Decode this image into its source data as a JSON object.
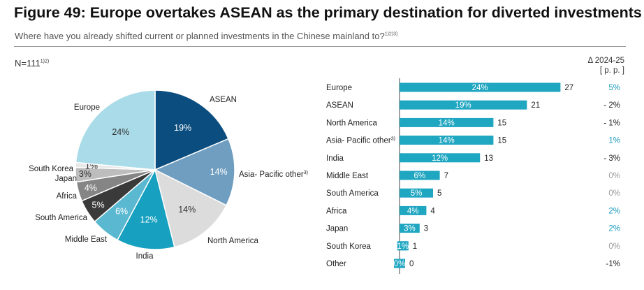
{
  "title": "Figure 49: Europe overtakes ASEAN as the primary destination for diverted investments",
  "subtitle": "Where have you already shifted current or planned investments in the Chinese mainland to?",
  "subtitle_note": "1)2)3)",
  "n_label": "N=111",
  "n_note": "1)2)",
  "delta_header": [
    "Δ 2024-25",
    "[ p. p. ]"
  ],
  "colors": {
    "bar": "#1fa6c1",
    "positive_delta": "#1a9cc0",
    "negative_delta": "#222222",
    "zero_delta": "#999999"
  },
  "chart_data": [
    {
      "type": "pie",
      "slices": [
        {
          "label": "ASEAN",
          "value": 19,
          "pct_label": "19%",
          "color": "#0b4d7e"
        },
        {
          "label": "Asia- Pacific other",
          "note": "3)",
          "value": 14,
          "pct_label": "14%",
          "color": "#6f9ec0"
        },
        {
          "label": "North America",
          "value": 14,
          "pct_label": "14%",
          "color": "#dcdcdc"
        },
        {
          "label": "India",
          "value": 12,
          "pct_label": "12%",
          "color": "#17a0bf"
        },
        {
          "label": "Middle East",
          "value": 6,
          "pct_label": "6%",
          "color": "#5ab9d1"
        },
        {
          "label": "South America",
          "value": 5,
          "pct_label": "5%",
          "color": "#3a3a3a"
        },
        {
          "label": "Africa",
          "value": 4,
          "pct_label": "4%",
          "color": "#858585"
        },
        {
          "label": "Japan",
          "value": 3,
          "pct_label": "3%",
          "color": "#bdbdbd"
        },
        {
          "label": "South Korea",
          "value": 1,
          "pct_label": "1%",
          "color": "#e8e8e8"
        },
        {
          "label": "Europe",
          "value": 24,
          "pct_label": "24%",
          "color": "#a9dbe8"
        }
      ]
    },
    {
      "type": "bar",
      "orientation": "horizontal",
      "rows": [
        {
          "category": "Europe",
          "pct_label": "24%",
          "count": 27,
          "delta": "5%"
        },
        {
          "category": "ASEAN",
          "pct_label": "19%",
          "count": 21,
          "delta": "- 2%"
        },
        {
          "category": "North America",
          "pct_label": "14%",
          "count": 15,
          "delta": "- 1%"
        },
        {
          "category": "Asia- Pacific other",
          "note": "3)",
          "pct_label": "14%",
          "count": 15,
          "delta": "1%"
        },
        {
          "category": "India",
          "pct_label": "12%",
          "count": 13,
          "delta": "- 3%"
        },
        {
          "category": "Middle East",
          "pct_label": "6%",
          "count": 7,
          "delta": "0%"
        },
        {
          "category": "South America",
          "pct_label": "5%",
          "count": 5,
          "delta": "0%"
        },
        {
          "category": "Africa",
          "pct_label": "4%",
          "count": 4,
          "delta": "2%"
        },
        {
          "category": "Japan",
          "pct_label": "3%",
          "count": 3,
          "delta": "2%"
        },
        {
          "category": "South Korea",
          "pct_label": "1%",
          "count": 1,
          "delta": "0%"
        },
        {
          "category": "Other",
          "pct_label": "0%",
          "count": 0,
          "delta": "-1%"
        }
      ]
    }
  ]
}
